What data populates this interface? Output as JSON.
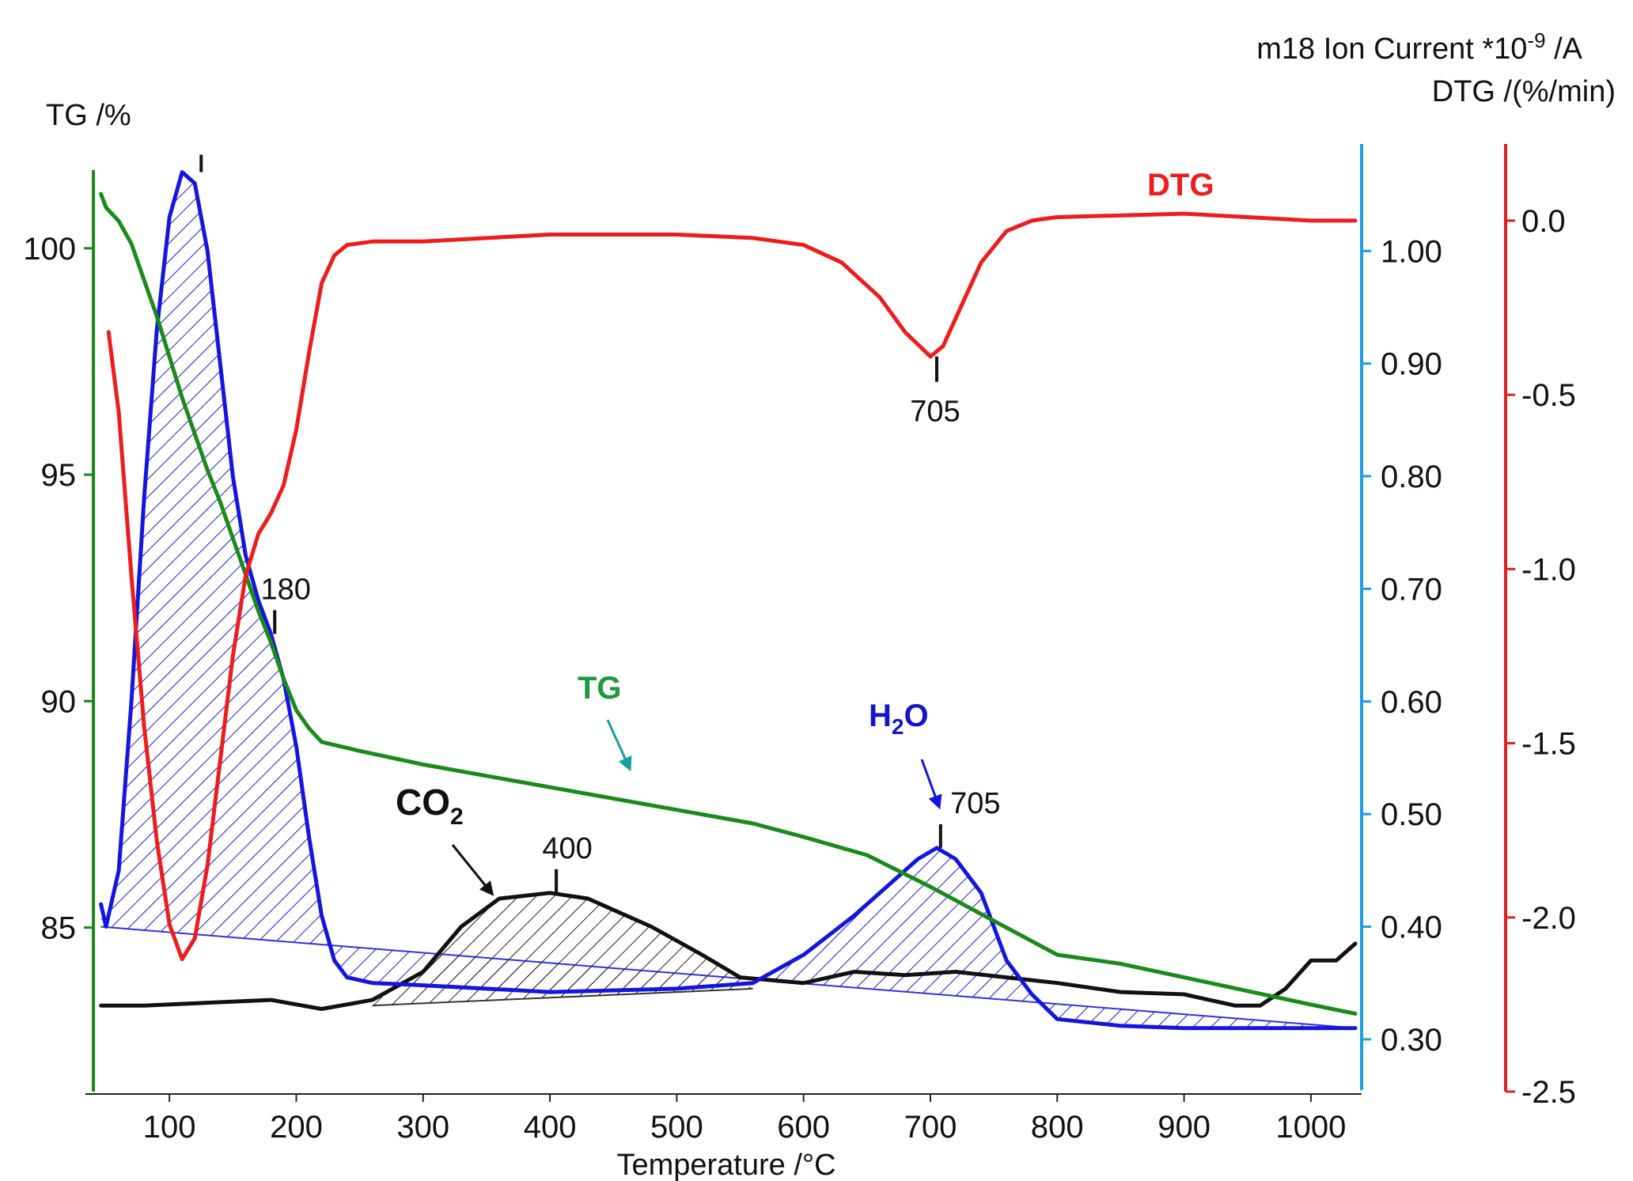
{
  "chart_data": {
    "type": "line",
    "xlabel": "Temperature /°C",
    "xlim": [
      40,
      1040
    ],
    "x_ticks": [
      100,
      200,
      300,
      400,
      500,
      600,
      700,
      800,
      900,
      1000
    ],
    "axes": {
      "tg": {
        "title": "TG /%",
        "ylim": [
          81.5,
          101.5
        ],
        "ticks": [
          100,
          95,
          90,
          85
        ],
        "color": "#1a8a1a"
      },
      "ion": {
        "title_main": "m18 Ion Current *10",
        "title_exp": "-9",
        "title_unit": " /A",
        "ylim": [
          0.255,
          1.095
        ],
        "ticks": [
          "1.00",
          "0.90",
          "0.80",
          "0.70",
          "0.60",
          "0.50",
          "0.40",
          "0.30"
        ],
        "color": "#1aa0e0"
      },
      "dtg": {
        "title": "DTG /(%/min)",
        "ylim": [
          -2.5,
          0.22
        ],
        "ticks": [
          "0.0",
          "-0.5",
          "-1.0",
          "-1.5",
          "-2.0",
          "-2.5"
        ],
        "color": "#e02020"
      }
    },
    "series": [
      {
        "name": "DTG",
        "axis": "dtg",
        "color": "#ee1c1c",
        "points": [
          [
            52,
            -0.32
          ],
          [
            60,
            -0.55
          ],
          [
            70,
            -1.02
          ],
          [
            80,
            -1.45
          ],
          [
            90,
            -1.78
          ],
          [
            100,
            -2.02
          ],
          [
            110,
            -2.12
          ],
          [
            120,
            -2.06
          ],
          [
            130,
            -1.85
          ],
          [
            140,
            -1.55
          ],
          [
            150,
            -1.25
          ],
          [
            160,
            -1.02
          ],
          [
            170,
            -0.9
          ],
          [
            180,
            -0.84
          ],
          [
            190,
            -0.76
          ],
          [
            200,
            -0.6
          ],
          [
            210,
            -0.38
          ],
          [
            220,
            -0.18
          ],
          [
            230,
            -0.1
          ],
          [
            240,
            -0.07
          ],
          [
            260,
            -0.06
          ],
          [
            300,
            -0.06
          ],
          [
            400,
            -0.04
          ],
          [
            500,
            -0.04
          ],
          [
            560,
            -0.05
          ],
          [
            600,
            -0.07
          ],
          [
            630,
            -0.12
          ],
          [
            660,
            -0.22
          ],
          [
            680,
            -0.32
          ],
          [
            700,
            -0.39
          ],
          [
            710,
            -0.36
          ],
          [
            720,
            -0.28
          ],
          [
            740,
            -0.12
          ],
          [
            760,
            -0.03
          ],
          [
            780,
            0.0
          ],
          [
            800,
            0.01
          ],
          [
            900,
            0.02
          ],
          [
            1000,
            0.0
          ],
          [
            1035,
            0.0
          ]
        ]
      },
      {
        "name": "TG",
        "axis": "tg",
        "color": "#1a8a1a",
        "points": [
          [
            46,
            101.2
          ],
          [
            50,
            100.9
          ],
          [
            60,
            100.6
          ],
          [
            70,
            100.1
          ],
          [
            80,
            99.3
          ],
          [
            90,
            98.5
          ],
          [
            100,
            97.6
          ],
          [
            110,
            96.7
          ],
          [
            120,
            95.9
          ],
          [
            130,
            95.1
          ],
          [
            140,
            94.4
          ],
          [
            150,
            93.6
          ],
          [
            160,
            92.8
          ],
          [
            170,
            92.0
          ],
          [
            180,
            91.3
          ],
          [
            190,
            90.5
          ],
          [
            200,
            89.8
          ],
          [
            210,
            89.4
          ],
          [
            220,
            89.1
          ],
          [
            250,
            88.9
          ],
          [
            300,
            88.6
          ],
          [
            400,
            88.1
          ],
          [
            500,
            87.6
          ],
          [
            560,
            87.3
          ],
          [
            600,
            87.0
          ],
          [
            650,
            86.6
          ],
          [
            700,
            85.9
          ],
          [
            740,
            85.3
          ],
          [
            780,
            84.7
          ],
          [
            800,
            84.4
          ],
          [
            850,
            84.2
          ],
          [
            900,
            83.9
          ],
          [
            950,
            83.6
          ],
          [
            1000,
            83.3
          ],
          [
            1035,
            83.1
          ]
        ]
      },
      {
        "name": "H2O",
        "axis": "ion",
        "color": "#1515e0",
        "points": [
          [
            46,
            0.42
          ],
          [
            50,
            0.4
          ],
          [
            60,
            0.45
          ],
          [
            70,
            0.6
          ],
          [
            80,
            0.78
          ],
          [
            90,
            0.93
          ],
          [
            100,
            1.03
          ],
          [
            110,
            1.07
          ],
          [
            120,
            1.06
          ],
          [
            130,
            1.0
          ],
          [
            140,
            0.9
          ],
          [
            150,
            0.8
          ],
          [
            160,
            0.73
          ],
          [
            170,
            0.69
          ],
          [
            180,
            0.66
          ],
          [
            190,
            0.62
          ],
          [
            200,
            0.56
          ],
          [
            210,
            0.48
          ],
          [
            220,
            0.41
          ],
          [
            230,
            0.37
          ],
          [
            240,
            0.355
          ],
          [
            260,
            0.35
          ],
          [
            300,
            0.348
          ],
          [
            400,
            0.342
          ],
          [
            500,
            0.345
          ],
          [
            560,
            0.35
          ],
          [
            600,
            0.375
          ],
          [
            640,
            0.41
          ],
          [
            670,
            0.44
          ],
          [
            690,
            0.46
          ],
          [
            705,
            0.47
          ],
          [
            720,
            0.46
          ],
          [
            740,
            0.43
          ],
          [
            760,
            0.37
          ],
          [
            780,
            0.34
          ],
          [
            800,
            0.318
          ],
          [
            850,
            0.312
          ],
          [
            900,
            0.31
          ],
          [
            1000,
            0.31
          ],
          [
            1035,
            0.31
          ]
        ]
      },
      {
        "name": "CO2",
        "axis": "ion",
        "color": "#111111",
        "points": [
          [
            46,
            0.33
          ],
          [
            80,
            0.33
          ],
          [
            120,
            0.332
          ],
          [
            180,
            0.335
          ],
          [
            220,
            0.327
          ],
          [
            260,
            0.335
          ],
          [
            300,
            0.36
          ],
          [
            330,
            0.4
          ],
          [
            360,
            0.425
          ],
          [
            400,
            0.43
          ],
          [
            430,
            0.425
          ],
          [
            480,
            0.4
          ],
          [
            520,
            0.375
          ],
          [
            550,
            0.355
          ],
          [
            600,
            0.35
          ],
          [
            640,
            0.36
          ],
          [
            680,
            0.357
          ],
          [
            720,
            0.36
          ],
          [
            760,
            0.355
          ],
          [
            800,
            0.35
          ],
          [
            850,
            0.342
          ],
          [
            900,
            0.34
          ],
          [
            940,
            0.33
          ],
          [
            960,
            0.33
          ],
          [
            980,
            0.345
          ],
          [
            1000,
            0.37
          ],
          [
            1020,
            0.37
          ],
          [
            1035,
            0.385
          ]
        ]
      }
    ],
    "baselines": [
      {
        "series": "H2O",
        "axis": "ion",
        "from": [
          46,
          0.4
        ],
        "to": [
          1035,
          0.31
        ]
      },
      {
        "series": "CO2",
        "axis": "ion",
        "from": [
          260,
          0.33
        ],
        "to": [
          560,
          0.345
        ]
      }
    ],
    "annotations": {
      "dtg_peak": {
        "text": "705",
        "x": 705,
        "y": -0.39,
        "axis": "dtg"
      },
      "h2o_peak1": {
        "x": 125,
        "y": 1.07,
        "axis": "ion"
      },
      "h2o_shoulder": {
        "text": "180",
        "x": 183,
        "y": 0.66,
        "axis": "ion"
      },
      "h2o_peak2": {
        "text": "705",
        "x": 708,
        "y": 0.47,
        "axis": "ion"
      },
      "co2_peak": {
        "text": "400",
        "x": 405,
        "y": 0.43,
        "axis": "ion"
      }
    },
    "labels": {
      "dtg": "DTG",
      "tg": "TG",
      "h2o_main": "H",
      "h2o_sub": "2",
      "h2o_end": "O",
      "co2_main": "CO",
      "co2_sub": "2"
    }
  }
}
